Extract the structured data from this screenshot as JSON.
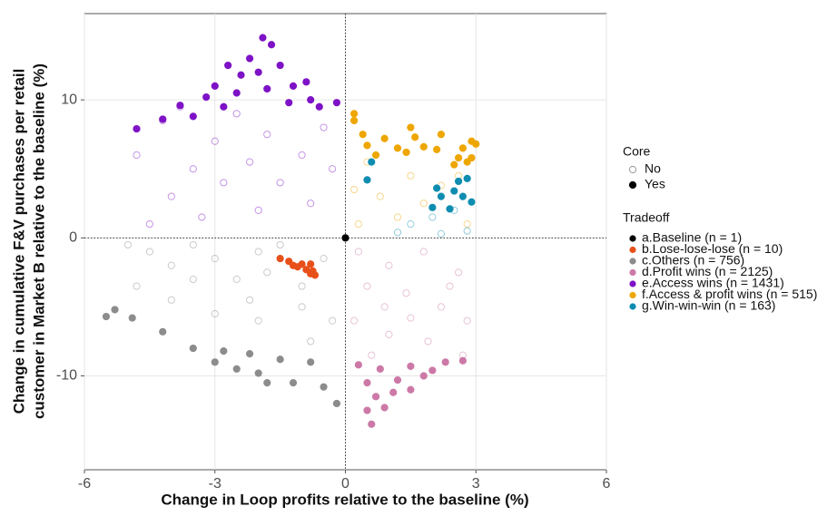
{
  "chart_data": {
    "type": "scatter",
    "x_label": "Change in Loop profits relative to the baseline (%)",
    "y_label": [
      "Change in cumulative F&V purchases per retail",
      "customer in Market B relative to the baseline (%)"
    ],
    "xlim": [
      -6,
      6
    ],
    "ylim": [
      -16.8,
      16.25
    ],
    "xticks": [
      -6,
      -3,
      0,
      3,
      6
    ],
    "yticks": [
      -10,
      0,
      10
    ],
    "grid": true,
    "reference_lines": {
      "x": 0,
      "y": 0
    },
    "core_legend": {
      "title": "Core",
      "labels": [
        "No",
        "Yes"
      ]
    },
    "legend_title": "Tradeoff",
    "series": [
      {
        "name": "a.Baseline (n = 1)",
        "color": "#000000",
        "x": [
          0
        ],
        "y": [
          0
        ],
        "core": [
          true
        ]
      },
      {
        "name": "b.Lose-lose-lose (n = 10)",
        "color": "#e8501b",
        "x": [
          -1.5,
          -1.2,
          -0.8,
          -0.7,
          -1.1,
          -0.9,
          -1.3,
          -0.75,
          -1.0,
          -0.8
        ],
        "y": [
          -1.5,
          -2.0,
          -1.9,
          -2.7,
          -2.1,
          -2.3,
          -1.7,
          -2.4,
          -1.9,
          -2.6
        ],
        "core": [
          true,
          true,
          true,
          true,
          true,
          true,
          true,
          true,
          true,
          true
        ]
      },
      {
        "name": "c.Others (n = 756)",
        "color": "#8c8c8c",
        "x": [
          -4.5,
          -4,
          -3.5,
          -3,
          -2.5,
          -2,
          -1.5,
          -1,
          -0.5,
          -4.8,
          -4,
          -3,
          -2,
          -1,
          -0.3,
          -3.5,
          -2.2,
          -0.8,
          -5,
          -1.8,
          -5.5,
          -5.3,
          -4.9,
          -4.2,
          -3.5,
          -2.8,
          -2.5,
          -2.0,
          -1.5,
          -1.2,
          -0.8,
          -0.5,
          -0.2,
          -1.8,
          -3.0,
          -2.2
        ],
        "y": [
          -1,
          -2,
          -0.5,
          -1.5,
          -3,
          -1,
          -0.5,
          -3.5,
          -1.5,
          -3.5,
          -4.5,
          -5.5,
          -6,
          -5,
          -6,
          -3,
          -4.5,
          -7.5,
          -0.5,
          -2.5,
          -5.7,
          -5.2,
          -5.8,
          -6.8,
          -8.0,
          -8.2,
          -9.5,
          -9.8,
          -8.8,
          -10.5,
          -9.0,
          -10.8,
          -12.0,
          -10.5,
          -9.0,
          -8.4
        ],
        "core": [
          false,
          false,
          false,
          false,
          false,
          false,
          false,
          false,
          false,
          false,
          false,
          false,
          false,
          false,
          false,
          false,
          false,
          false,
          false,
          false,
          true,
          true,
          true,
          true,
          true,
          true,
          true,
          true,
          true,
          true,
          true,
          true,
          true,
          true,
          true,
          true
        ]
      },
      {
        "name": "d.Profit wins (n = 2125)",
        "color": "#cc79a7",
        "x": [
          0.3,
          1,
          1.8,
          2.6,
          0.5,
          1.4,
          2.2,
          2.8,
          0.2,
          1,
          1.9,
          2.7,
          0.6,
          1.5,
          2.4,
          0.9,
          0.3,
          0.8,
          1.5,
          2.3,
          2.7,
          0.5,
          1.2,
          1.8,
          0.7,
          1.1,
          0.5,
          0.6,
          1.5,
          0.9,
          2.0
        ],
        "y": [
          -1,
          -2,
          -1,
          -2.5,
          -3.5,
          -4,
          -5,
          -6,
          -6,
          -7,
          -7.5,
          -8.5,
          -8.5,
          -5.8,
          -3.5,
          -5,
          -9.2,
          -9.5,
          -9.3,
          -9.0,
          -8.9,
          -10.5,
          -10.3,
          -10,
          -11.5,
          -11.2,
          -12.5,
          -13.5,
          -11,
          -12.3,
          -9.6
        ],
        "core": [
          false,
          false,
          false,
          false,
          false,
          false,
          false,
          false,
          false,
          false,
          false,
          false,
          false,
          false,
          false,
          false,
          true,
          true,
          true,
          true,
          true,
          true,
          true,
          true,
          true,
          true,
          true,
          true,
          true,
          true,
          true
        ]
      },
      {
        "name": "e.Access wins (n = 1431)",
        "color": "#7e12c6",
        "x": [
          -4.5,
          -4,
          -3.5,
          -3,
          -2.5,
          -2,
          -1.5,
          -1,
          -0.5,
          -4.8,
          -4.2,
          -3.3,
          -2.8,
          -1.8,
          -0.8,
          -0.3,
          -3.8,
          -2.2,
          -4.8,
          -4.2,
          -3.8,
          -3.5,
          -3.2,
          -3,
          -2.7,
          -2.5,
          -2.2,
          -2,
          -1.9,
          -1.7,
          -1.5,
          -1.8,
          -1.2,
          -0.8,
          -0.6,
          -0.2,
          -2.4,
          -2.8,
          -1.3,
          -0.9
        ],
        "y": [
          1,
          3,
          5,
          7,
          9,
          2,
          4,
          6,
          8,
          6,
          8.5,
          1.5,
          4,
          7.5,
          2.5,
          5,
          9.5,
          5.5,
          7.9,
          8.6,
          9.6,
          8.8,
          10.2,
          11,
          12.5,
          10.5,
          13,
          12,
          14.5,
          14,
          12.5,
          10.8,
          11,
          10,
          9.5,
          9.8,
          11.8,
          9.5,
          9.8,
          11.3
        ],
        "core": [
          false,
          false,
          false,
          false,
          false,
          false,
          false,
          false,
          false,
          false,
          false,
          false,
          false,
          false,
          false,
          false,
          false,
          false,
          true,
          true,
          true,
          true,
          true,
          true,
          true,
          true,
          true,
          true,
          true,
          true,
          true,
          true,
          true,
          true,
          true,
          true,
          true,
          true,
          true,
          true
        ]
      },
      {
        "name": "f.Access & profit wins (n = 515)",
        "color": "#eea600",
        "x": [
          0.3,
          0.8,
          1.2,
          1.8,
          2.2,
          2.6,
          0.5,
          1.5,
          2.8,
          0.2,
          0.2,
          0.4,
          0.5,
          0.7,
          0.9,
          1.2,
          1.5,
          1.6,
          1.8,
          2.1,
          2.2,
          2.6,
          2.7,
          2.8,
          2.9,
          3.0,
          2.5,
          2.9,
          0.2,
          1.4
        ],
        "y": [
          1,
          3,
          1.5,
          2.5,
          3.8,
          4.5,
          5.5,
          4.5,
          1,
          3.5,
          8.5,
          7.5,
          6.7,
          6.0,
          7.2,
          6.5,
          8,
          7.3,
          6.6,
          6.4,
          7.5,
          5.8,
          6.5,
          5.5,
          7,
          6.8,
          5.3,
          5.8,
          9.0,
          6.2
        ],
        "core": [
          false,
          false,
          false,
          false,
          false,
          false,
          false,
          false,
          false,
          false,
          true,
          true,
          true,
          true,
          true,
          true,
          true,
          true,
          true,
          true,
          true,
          true,
          true,
          true,
          true,
          true,
          true,
          true,
          true,
          true
        ]
      },
      {
        "name": "g.Win-win-win (n = 163)",
        "color": "#0f8db0",
        "x": [
          1.5,
          2,
          2.5,
          2.8,
          2.2,
          1.2,
          0.6,
          0.5,
          2.1,
          2.2,
          2.5,
          2.6,
          2.8,
          2.7,
          2.9,
          2.0,
          2.4
        ],
        "y": [
          1,
          1.5,
          2,
          0.5,
          0.3,
          0.4,
          5.5,
          4.2,
          3.6,
          3.0,
          3.4,
          4.1,
          4.3,
          3.0,
          2.6,
          2.2,
          2.1
        ],
        "core": [
          false,
          false,
          false,
          false,
          false,
          false,
          true,
          true,
          true,
          true,
          true,
          true,
          true,
          true,
          true,
          true,
          true
        ]
      }
    ]
  }
}
